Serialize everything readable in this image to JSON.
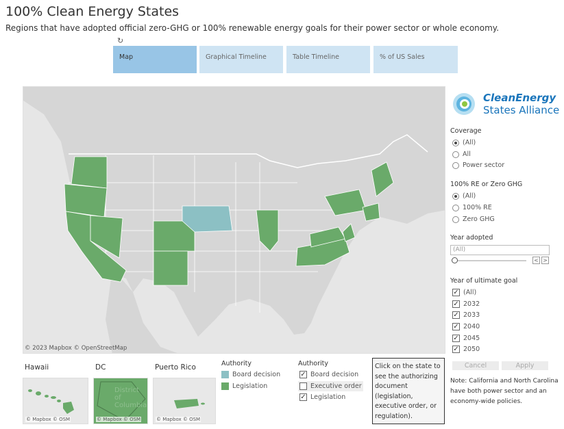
{
  "header": {
    "title": "100% Clean Energy States",
    "subtitle": "Regions that have adopted official zero-GHG or 100% renewable energy goals for their power sector or whole economy."
  },
  "tabs": [
    {
      "label": "Map",
      "active": true
    },
    {
      "label": "Graphical Timeline",
      "active": false
    },
    {
      "label": "Table Timeline",
      "active": false
    },
    {
      "label": "% of US Sales",
      "active": false
    }
  ],
  "map": {
    "attribution": "© 2023 Mapbox © OpenStreetMap",
    "colors": {
      "legislation": "#6aaa6a",
      "board_decision": "#8cc0c4",
      "base": "#d4d4d4",
      "water": "#e6e6e6"
    }
  },
  "logo": {
    "line1": "CleanEnergy",
    "line2": "States Alliance"
  },
  "filters": {
    "coverage": {
      "title": "Coverage",
      "options": [
        {
          "label": "(All)",
          "selected": true
        },
        {
          "label": "All",
          "selected": false
        },
        {
          "label": "Power sector",
          "selected": false
        }
      ]
    },
    "re_type": {
      "title": "100% RE or Zero GHG",
      "options": [
        {
          "label": "(All)",
          "selected": true
        },
        {
          "label": "100% RE",
          "selected": false
        },
        {
          "label": "Zero GHG",
          "selected": false
        }
      ]
    },
    "year_adopted": {
      "title": "Year adopted",
      "value": "(All)"
    },
    "ultimate_goal": {
      "title": "Year of ultimate goal",
      "options": [
        {
          "label": "(All)",
          "checked": true
        },
        {
          "label": "2032",
          "checked": true
        },
        {
          "label": "2033",
          "checked": true
        },
        {
          "label": "2040",
          "checked": true
        },
        {
          "label": "2045",
          "checked": true
        },
        {
          "label": "2050",
          "checked": true
        }
      ]
    },
    "buttons": {
      "cancel": "Cancel",
      "apply": "Apply"
    }
  },
  "note": "Note: California and North Carolina have both power sector and an economy-wide policies.",
  "insets": {
    "hawaii": {
      "label": "Hawaii",
      "attr": "© Mapbox © OSM"
    },
    "dc": {
      "label": "DC",
      "attr": "© Mapbox © OSM",
      "ghost": "District of Columbia"
    },
    "puerto_rico": {
      "label": "Puerto Rico",
      "attr": "© Mapbox © OSM"
    }
  },
  "legend_color": {
    "title": "Authority",
    "items": [
      {
        "label": "Board decision",
        "color": "#8cc0c4"
      },
      {
        "label": "Legislation",
        "color": "#6aaa6a"
      }
    ]
  },
  "legend_filter": {
    "title": "Authority",
    "items": [
      {
        "label": "Board decision",
        "checked": true
      },
      {
        "label": "Executive order",
        "checked": false
      },
      {
        "label": "Legislation",
        "checked": true
      }
    ]
  },
  "info_box": "Click on the state to see the authorizing document (legislation, executive order, or regulation)."
}
